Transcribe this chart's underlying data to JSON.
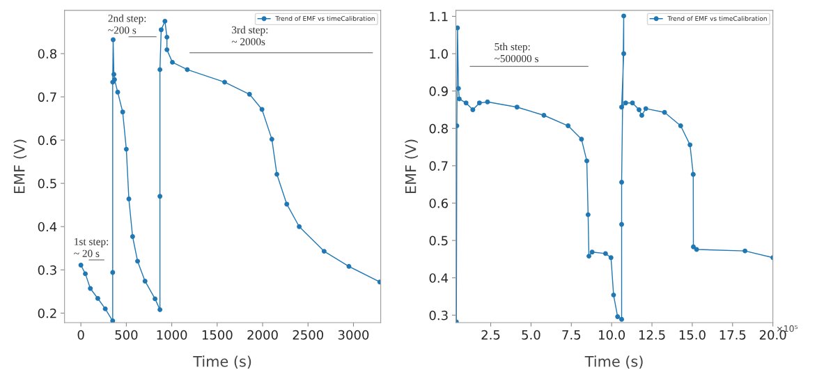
{
  "chart_data": [
    {
      "type": "line",
      "xlabel": "Time (s)",
      "ylabel": "EMF (V)",
      "xlim": [
        -180,
        3300
      ],
      "ylim": [
        0.178,
        0.9
      ],
      "xticks": [
        0,
        500,
        1000,
        1500,
        2000,
        2500,
        3000
      ],
      "yticks": [
        0.2,
        0.3,
        0.4,
        0.5,
        0.6,
        0.7,
        0.8
      ],
      "legend": "top right",
      "marker": "circle",
      "line_style": "solid",
      "grid": false,
      "series": [
        {
          "name": "Trend of EMF vs timeCalibration",
          "color": "#1f77b4",
          "x": [
            0,
            49,
            104,
            186,
            268,
            350,
            350,
            350,
            355,
            363,
            370,
            405,
            460,
            500,
            528,
            569,
            624,
            706,
            816,
            870,
            870,
            870,
            884,
            925,
            947,
            947,
            1007,
            1171,
            1582,
            1856,
            1993,
            2102,
            2157,
            2266,
            2403,
            2677,
            2950,
            3290
          ],
          "values": [
            0.311,
            0.291,
            0.257,
            0.234,
            0.21,
            0.182,
            0.294,
            0.734,
            0.832,
            0.752,
            0.74,
            0.711,
            0.665,
            0.579,
            0.464,
            0.377,
            0.32,
            0.274,
            0.233,
            0.208,
            0.47,
            0.763,
            0.855,
            0.875,
            0.838,
            0.809,
            0.78,
            0.763,
            0.734,
            0.706,
            0.671,
            0.602,
            0.521,
            0.452,
            0.4,
            0.343,
            0.308,
            0.272
          ]
        },
        {
          "color": "#555555",
          "marker": "none",
          "x": [
            90,
            255
          ],
          "values": [
            0.323,
            0.323
          ]
        },
        {
          "color": "#555555",
          "marker": "none",
          "x": [
            528,
            829
          ],
          "values": [
            0.839,
            0.839
          ]
        },
        {
          "color": "#555555",
          "marker": "none",
          "x": [
            1199,
            3210
          ],
          "values": [
            0.802,
            0.802
          ]
        }
      ],
      "annotations": [
        "1st step:\n~ 20 s",
        "2nd step:\n~200 s",
        "3rd step:\n~ 2000s"
      ]
    },
    {
      "type": "line",
      "xlabel": "Time (s)",
      "ylabel": "EMF (V)",
      "xlim": [
        0.34,
        20.0
      ],
      "ylim": [
        0.28,
        1.116
      ],
      "xticks": [
        2.5,
        {
          "value": 5,
          "label": "5.0"
        },
        7.5,
        {
          "value": 10,
          "label": "10.0"
        },
        12.5,
        {
          "value": 15,
          "label": "15.0"
        },
        17.5,
        {
          "value": 20,
          "label": "20.0"
        }
      ],
      "yticks": [
        0.3,
        0.4,
        0.5,
        0.6,
        0.7,
        0.8,
        0.9,
        {
          "value": 1,
          "label": "1.0"
        },
        1.1
      ],
      "legend": "top right",
      "marker": "circle",
      "line_style": "solid",
      "grid": false,
      "series": [
        {
          "name": "Trend of EMF vs timeCalibration",
          "color": "#1f77b4",
          "x": [
            0.37,
            0.4,
            0.44,
            0.5,
            0.55,
            0.97,
            1.39,
            1.8,
            2.3,
            4.13,
            5.8,
            7.3,
            8.13,
            8.46,
            8.54,
            8.59,
            8.79,
            9.62,
            9.96,
            10.12,
            10.37,
            10.62,
            10.62,
            10.62,
            10.75,
            10.75,
            10.62,
            10.87,
            11.29,
            11.7,
            11.87,
            12.12,
            13.28,
            14.28,
            14.86,
            15.06,
            15.07,
            15.27,
            18.27,
            20.0
          ],
          "values": [
            0.282,
            0.807,
            1.069,
            0.907,
            0.879,
            0.868,
            0.85,
            0.868,
            0.871,
            0.857,
            0.835,
            0.807,
            0.771,
            0.713,
            0.569,
            0.458,
            0.469,
            0.465,
            0.454,
            0.354,
            0.296,
            0.289,
            0.543,
            0.656,
            1.101,
            1.0,
            0.857,
            0.868,
            0.868,
            0.85,
            0.835,
            0.853,
            0.843,
            0.807,
            0.756,
            0.677,
            0.483,
            0.476,
            0.472,
            0.454
          ]
        },
        {
          "color": "#555555",
          "marker": "none",
          "x": [
            1.22,
            8.54
          ],
          "values": [
            0.966,
            0.966
          ]
        }
      ],
      "annotations": [
        "×10⁵",
        "5th step:\n~500000 s"
      ]
    }
  ]
}
